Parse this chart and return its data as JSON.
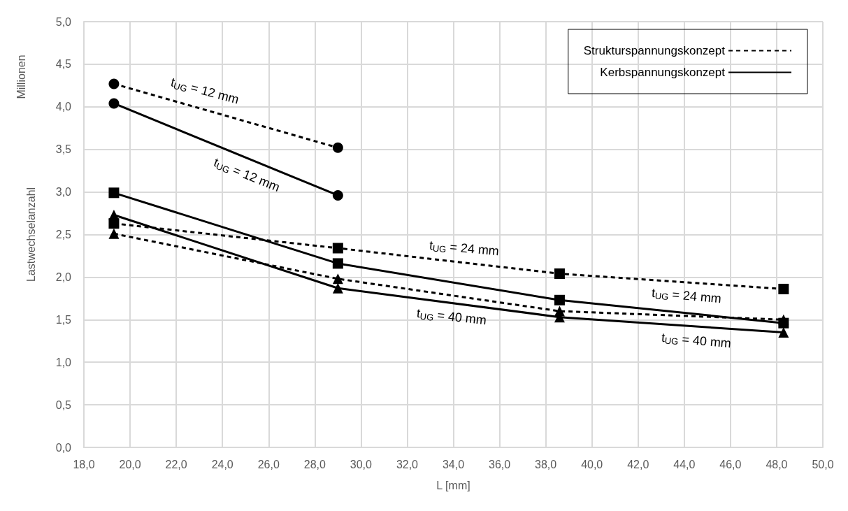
{
  "chart_data": {
    "type": "line",
    "xlabel": "L [mm]",
    "ylabel": "Lastwechselanzahl",
    "series": [
      {
        "name": "Strukturspannungskonzept",
        "color": "#000000",
        "line_style": "dashed",
        "marker": "circle",
        "x": [
          19.3,
          29.0
        ],
        "values": [
          4.27,
          3.52
        ]
      },
      {
        "name": "Kerbspannungskonzept",
        "color": "#000000",
        "line_style": "solid",
        "marker": "circle",
        "x": [
          19.3,
          29.0
        ],
        "values": [
          4.04,
          2.96
        ]
      },
      {
        "color": "#000000",
        "line_style": "dashed",
        "marker": "square",
        "x": [
          19.3,
          29.0,
          38.6,
          48.3
        ],
        "values": [
          2.63,
          2.34,
          2.04,
          1.86
        ]
      },
      {
        "color": "#000000",
        "line_style": "solid",
        "marker": "square",
        "x": [
          19.3,
          29.0,
          38.6,
          48.3
        ],
        "values": [
          2.99,
          2.16,
          1.73,
          1.46
        ]
      },
      {
        "color": "#000000",
        "line_style": "dashed",
        "marker": "triangle",
        "x": [
          19.3,
          29.0,
          38.6,
          48.3
        ],
        "values": [
          2.51,
          1.98,
          1.6,
          1.5
        ]
      },
      {
        "color": "#000000",
        "line_style": "solid",
        "marker": "triangle",
        "x": [
          19.3,
          29.0,
          38.6,
          48.3
        ],
        "values": [
          2.73,
          1.87,
          1.53,
          1.35
        ]
      }
    ],
    "xlim": [
      18,
      50
    ],
    "xticks": [
      {
        "value": 18,
        "label": "18,0"
      },
      {
        "value": 20,
        "label": "20,0"
      },
      {
        "value": 22,
        "label": "22,0"
      },
      {
        "value": 24,
        "label": "24,0"
      },
      {
        "value": 26,
        "label": "26,0"
      },
      {
        "value": 28,
        "label": "28,0"
      },
      {
        "value": 30,
        "label": "30,0"
      },
      {
        "value": 32,
        "label": "32,0"
      },
      {
        "value": 34,
        "label": "34,0"
      },
      {
        "value": 36,
        "label": "36,0"
      },
      {
        "value": 38,
        "label": "38,0"
      },
      {
        "value": 40,
        "label": "40,0"
      },
      {
        "value": 42,
        "label": "42,0"
      },
      {
        "value": 44,
        "label": "44,0"
      },
      {
        "value": 46,
        "label": "46,0"
      },
      {
        "value": 48,
        "label": "48,0"
      },
      {
        "value": 50,
        "label": "50,0"
      }
    ],
    "ylim": [
      0,
      5
    ],
    "yticks": [
      {
        "value": 0,
        "label": "0,0"
      },
      {
        "value": 0.5,
        "label": "0,5"
      },
      {
        "value": 1,
        "label": "1,0"
      },
      {
        "value": 1.5,
        "label": "1,5"
      },
      {
        "value": 2,
        "label": "2,0"
      },
      {
        "value": 2.5,
        "label": "2,5"
      },
      {
        "value": 3,
        "label": "3,0"
      },
      {
        "value": 3.5,
        "label": "3,5"
      },
      {
        "value": 4,
        "label": "4,0"
      },
      {
        "value": 4.5,
        "label": "4,5"
      },
      {
        "value": 5,
        "label": "5,0"
      }
    ],
    "grid": true,
    "legend": "top right",
    "annotations": [
      "Millionen",
      "t$_{UG}$ = 12 mm",
      "t$_{UG}$ = 12 mm",
      "t$_{UG}$ = 24 mm",
      "t$_{UG}$ = 24 mm",
      "t$_{UG}$ = 40 mm",
      "t$_{UG}$ = 40 mm"
    ]
  }
}
